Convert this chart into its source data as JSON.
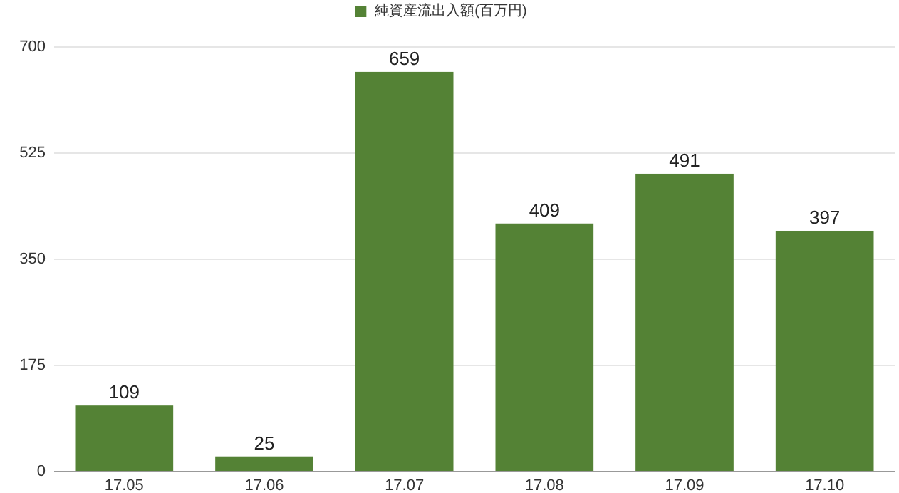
{
  "chart_data": {
    "type": "bar",
    "categories": [
      "17.05",
      "17.06",
      "17.07",
      "17.08",
      "17.09",
      "17.10"
    ],
    "series": [
      {
        "name": "純資産流出入額(百万円)",
        "color": "#548235",
        "values": [
          109,
          25,
          659,
          409,
          491,
          397
        ]
      }
    ],
    "ylim": [
      0,
      700
    ],
    "yticks": [
      0,
      175,
      350,
      525,
      700
    ],
    "grid": "y",
    "legend": "top",
    "data_labels": true
  }
}
